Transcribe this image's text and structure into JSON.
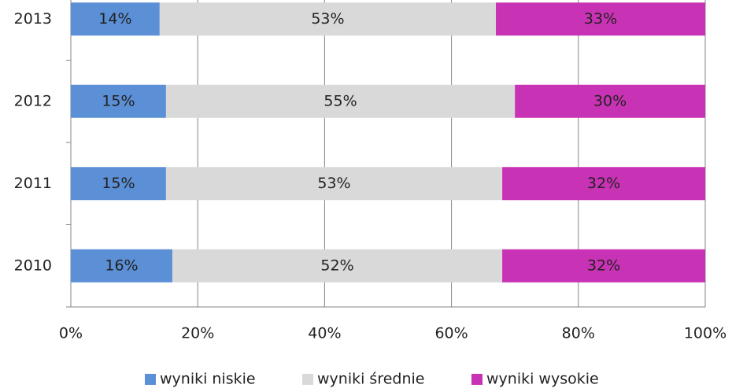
{
  "chart_data": {
    "type": "stacked_barh",
    "categories": [
      "2010",
      "2011",
      "2012",
      "2013"
    ],
    "series": [
      {
        "name": "wyniki niskie",
        "color": "#5b8fd6",
        "values": [
          16,
          15,
          15,
          14
        ],
        "value_labels": [
          "16%",
          "15%",
          "15%",
          "14%"
        ]
      },
      {
        "name": "wyniki średnie",
        "color": "#d9d9d9",
        "values": [
          52,
          53,
          55,
          53
        ],
        "value_labels": [
          "52%",
          "53%",
          "55%",
          "53%"
        ]
      },
      {
        "name": "wyniki wysokie",
        "color": "#c832b4",
        "values": [
          32,
          32,
          30,
          33
        ],
        "value_labels": [
          "32%",
          "32%",
          "30%",
          "33%"
        ]
      }
    ],
    "xlim": [
      0,
      100
    ],
    "xticks": [
      {
        "value": 0,
        "label": "0%"
      },
      {
        "value": 20,
        "label": "20%"
      },
      {
        "value": 40,
        "label": "40%"
      },
      {
        "value": 60,
        "label": "60%"
      },
      {
        "value": 80,
        "label": "80%"
      },
      {
        "value": 100,
        "label": "100%"
      }
    ],
    "grid": true,
    "legend": "bottom"
  }
}
